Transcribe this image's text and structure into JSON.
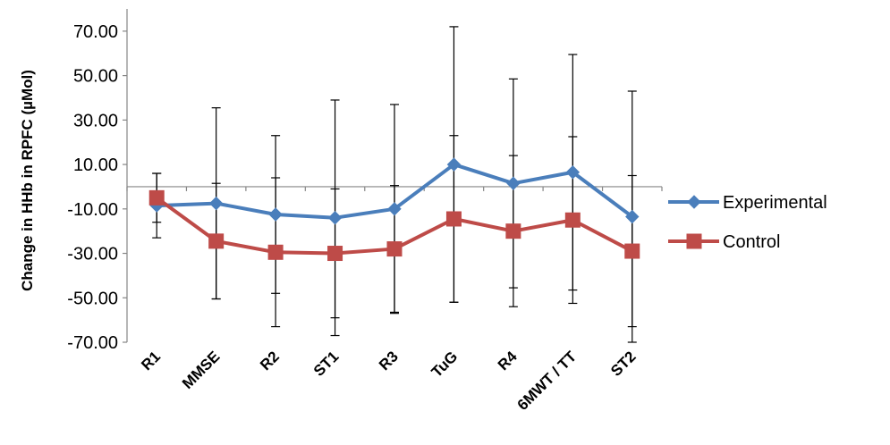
{
  "chart_data": {
    "type": "line",
    "title": "",
    "xlabel": "",
    "ylabel": "Change in HHb in RPFC (µMol)",
    "ylim": [
      -70,
      80
    ],
    "y_ticks": [
      "70.00",
      "50.00",
      "30.00",
      "10.00",
      "-10.00",
      "-30.00",
      "-50.00",
      "-70.00"
    ],
    "grid": false,
    "legend_position": "right",
    "categories": [
      "R1",
      "MMSE",
      "R2",
      "ST1",
      "R3",
      "TuG",
      "R4",
      "6MWT / TT",
      "ST2"
    ],
    "series": [
      {
        "name": "Experimental",
        "color": "#4a7ebb",
        "marker": "diamond",
        "values": [
          -8.5,
          -7.5,
          -12.5,
          -14,
          -10,
          10,
          1.5,
          6.5,
          -13.5
        ],
        "error": [
          14.5,
          43,
          35.5,
          53,
          47,
          62,
          47,
          53,
          56.5
        ]
      },
      {
        "name": "Control",
        "color": "#be4b48",
        "marker": "square",
        "values": [
          -5,
          -24.5,
          -29.5,
          -30,
          -28,
          -14.5,
          -20,
          -15,
          -29
        ],
        "error": [
          11,
          26,
          33.5,
          29,
          28.5,
          37.5,
          34,
          37.5,
          34
        ]
      }
    ]
  }
}
